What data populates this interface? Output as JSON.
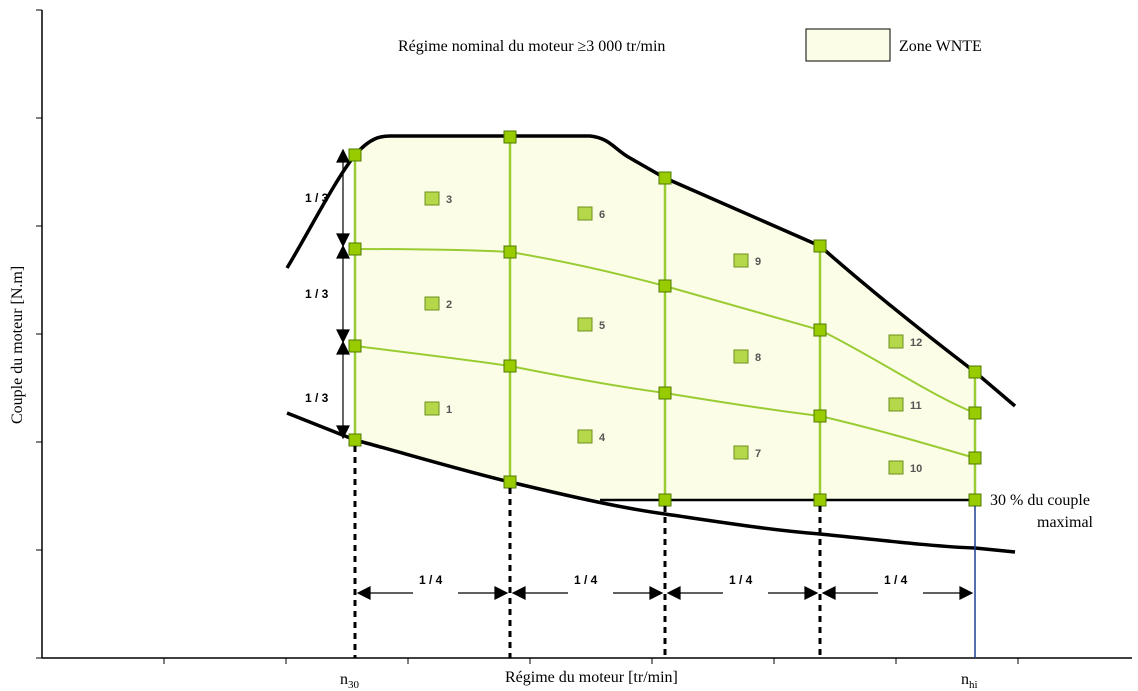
{
  "legend": {
    "title": "Régime nominal du moteur ≥3 000 tr/min",
    "zone_label": "Zone WNTE",
    "zone_color": "#fcfde6"
  },
  "axes": {
    "xlabel": "Régime du moteur [tr/min]",
    "ylabel": "Couple du moteur [N.m]",
    "x_tick_n30": "n",
    "x_tick_n30_sub": "30",
    "x_tick_nhi": "n",
    "x_tick_nhi_sub": "hi"
  },
  "annotations": {
    "min_torque_line1": "30 % du couple",
    "min_torque_line2": "maximal",
    "third": "1 / 3",
    "quarter": "1 / 4"
  },
  "cells": [
    "1",
    "2",
    "3",
    "4",
    "5",
    "6",
    "7",
    "8",
    "9",
    "10",
    "11",
    "12"
  ],
  "colors": {
    "grid_green": "#99cc33",
    "node_fill": "#99cc00",
    "curve": "#000000",
    "nhi_line": "#1f3f8f"
  }
}
